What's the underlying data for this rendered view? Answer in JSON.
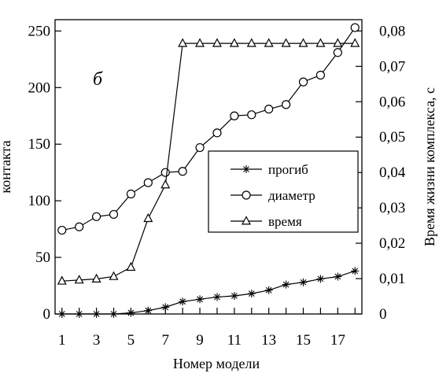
{
  "chart_data": {
    "type": "line",
    "panel_label": "б",
    "xlabel": "Номер модели",
    "ylabel_left": "контакта",
    "ylabel_right": "Время жизни комплекса, с",
    "x": [
      1,
      2,
      3,
      4,
      5,
      6,
      7,
      8,
      9,
      10,
      11,
      12,
      13,
      14,
      15,
      16,
      17,
      18
    ],
    "x_tick_labels": [
      "1",
      "3",
      "5",
      "7",
      "9",
      "11",
      "13",
      "15",
      "17"
    ],
    "x_tick_values": [
      1,
      3,
      5,
      7,
      9,
      11,
      13,
      15,
      17
    ],
    "xlim": [
      0.6,
      18.4
    ],
    "ylim_left": [
      0,
      260
    ],
    "y_left_ticks": [
      0,
      50,
      100,
      150,
      200,
      250
    ],
    "y_left_tick_labels": [
      "0",
      "50",
      "100",
      "150",
      "200",
      "250"
    ],
    "ylim_right": [
      0,
      0.0832
    ],
    "y_right_ticks": [
      0,
      0.01,
      0.02,
      0.03,
      0.04,
      0.05,
      0.06,
      0.07,
      0.08
    ],
    "y_right_tick_labels": [
      "0",
      "0,01",
      "0,02",
      "0,03",
      "0,04",
      "0,05",
      "0,06",
      "0,07",
      "0,08"
    ],
    "legend_position": "center-right",
    "series": [
      {
        "name": "прогиб",
        "marker": "asterisk",
        "axis": "left",
        "values": [
          0,
          0,
          0,
          0,
          1,
          3,
          6,
          11,
          13,
          15,
          16,
          18,
          21,
          26,
          28,
          31,
          33,
          38
        ]
      },
      {
        "name": "диаметр",
        "marker": "circle",
        "axis": "left",
        "values": [
          74,
          77,
          86,
          88,
          106,
          116,
          125,
          126,
          147,
          160,
          175,
          176,
          181,
          185,
          205,
          211,
          231,
          253
        ]
      },
      {
        "name": "время",
        "marker": "triangle",
        "axis": "right",
        "values": [
          0.0093,
          0.0096,
          0.0099,
          0.0106,
          0.0132,
          0.027,
          0.0365,
          0.0765,
          0.0765,
          0.0765,
          0.0765,
          0.0765,
          0.0765,
          0.0765,
          0.0765,
          0.0765,
          0.0765,
          0.0765
        ]
      }
    ]
  }
}
